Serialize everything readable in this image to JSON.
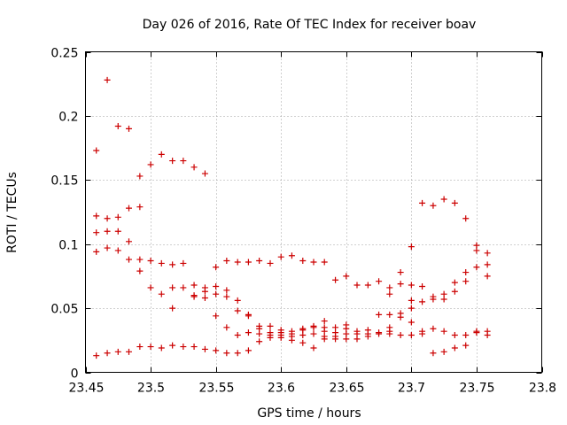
{
  "chart_data": {
    "type": "scatter",
    "title": "Day 026 of 2016, Rate Of TEC Index for receiver boav",
    "xlabel": "GPS time / hours",
    "ylabel": "ROTI / TECUs",
    "xlim": [
      23.45,
      23.8
    ],
    "ylim": [
      0,
      0.25
    ],
    "xticks": [
      23.45,
      23.5,
      23.55,
      23.6,
      23.65,
      23.7,
      23.75,
      23.8
    ],
    "xtick_labels": [
      "23.45",
      "23.5",
      "23.55",
      "23.6",
      "23.65",
      "23.7",
      "23.75",
      "23.8"
    ],
    "yticks": [
      0,
      0.05,
      0.1,
      0.15,
      0.2,
      0.25
    ],
    "ytick_labels": [
      "0",
      "0.05",
      "0.1",
      "0.15",
      "0.2",
      "0.25"
    ],
    "grid": true,
    "marker": "+",
    "color": "#cc0000",
    "points": [
      [
        23.4583,
        0.173
      ],
      [
        23.4583,
        0.122
      ],
      [
        23.4583,
        0.109
      ],
      [
        23.4583,
        0.094
      ],
      [
        23.4583,
        0.013
      ],
      [
        23.4667,
        0.228
      ],
      [
        23.4667,
        0.12
      ],
      [
        23.4667,
        0.11
      ],
      [
        23.4667,
        0.097
      ],
      [
        23.4667,
        0.015
      ],
      [
        23.475,
        0.192
      ],
      [
        23.475,
        0.121
      ],
      [
        23.475,
        0.11
      ],
      [
        23.475,
        0.095
      ],
      [
        23.475,
        0.016
      ],
      [
        23.4833,
        0.19
      ],
      [
        23.4833,
        0.128
      ],
      [
        23.4833,
        0.102
      ],
      [
        23.4833,
        0.088
      ],
      [
        23.4833,
        0.016
      ],
      [
        23.4917,
        0.153
      ],
      [
        23.4917,
        0.129
      ],
      [
        23.4917,
        0.088
      ],
      [
        23.4917,
        0.079
      ],
      [
        23.4917,
        0.02
      ],
      [
        23.5,
        0.162
      ],
      [
        23.5,
        0.087
      ],
      [
        23.5,
        0.066
      ],
      [
        23.5,
        0.02
      ],
      [
        23.5083,
        0.17
      ],
      [
        23.5083,
        0.085
      ],
      [
        23.5083,
        0.061
      ],
      [
        23.5083,
        0.019
      ],
      [
        23.5167,
        0.165
      ],
      [
        23.5167,
        0.084
      ],
      [
        23.5167,
        0.066
      ],
      [
        23.5167,
        0.05
      ],
      [
        23.5167,
        0.021
      ],
      [
        23.525,
        0.165
      ],
      [
        23.525,
        0.085
      ],
      [
        23.525,
        0.066
      ],
      [
        23.525,
        0.02
      ],
      [
        23.5333,
        0.16
      ],
      [
        23.5333,
        0.068
      ],
      [
        23.5333,
        0.06
      ],
      [
        23.5333,
        0.059
      ],
      [
        23.5333,
        0.02
      ],
      [
        23.5417,
        0.155
      ],
      [
        23.5417,
        0.066
      ],
      [
        23.5417,
        0.063
      ],
      [
        23.5417,
        0.058
      ],
      [
        23.5417,
        0.018
      ],
      [
        23.55,
        0.082
      ],
      [
        23.55,
        0.067
      ],
      [
        23.55,
        0.061
      ],
      [
        23.55,
        0.044
      ],
      [
        23.55,
        0.017
      ],
      [
        23.5583,
        0.087
      ],
      [
        23.5583,
        0.064
      ],
      [
        23.5583,
        0.059
      ],
      [
        23.5583,
        0.035
      ],
      [
        23.5583,
        0.015
      ],
      [
        23.5667,
        0.086
      ],
      [
        23.5667,
        0.056
      ],
      [
        23.5667,
        0.048
      ],
      [
        23.5667,
        0.029
      ],
      [
        23.5667,
        0.015
      ],
      [
        23.575,
        0.086
      ],
      [
        23.575,
        0.045
      ],
      [
        23.575,
        0.044
      ],
      [
        23.575,
        0.031
      ],
      [
        23.575,
        0.017
      ],
      [
        23.5833,
        0.087
      ],
      [
        23.5833,
        0.036
      ],
      [
        23.5833,
        0.034
      ],
      [
        23.5833,
        0.03
      ],
      [
        23.5833,
        0.024
      ],
      [
        23.5917,
        0.085
      ],
      [
        23.5917,
        0.036
      ],
      [
        23.5917,
        0.031
      ],
      [
        23.5917,
        0.029
      ],
      [
        23.5917,
        0.027
      ],
      [
        23.6,
        0.09
      ],
      [
        23.6,
        0.033
      ],
      [
        23.6,
        0.031
      ],
      [
        23.6,
        0.029
      ],
      [
        23.6,
        0.027
      ],
      [
        23.6083,
        0.091
      ],
      [
        23.6083,
        0.032
      ],
      [
        23.6083,
        0.03
      ],
      [
        23.6083,
        0.028
      ],
      [
        23.6083,
        0.025
      ],
      [
        23.6167,
        0.087
      ],
      [
        23.6167,
        0.034
      ],
      [
        23.6167,
        0.033
      ],
      [
        23.6167,
        0.029
      ],
      [
        23.6167,
        0.023
      ],
      [
        23.625,
        0.086
      ],
      [
        23.625,
        0.036
      ],
      [
        23.625,
        0.035
      ],
      [
        23.625,
        0.03
      ],
      [
        23.625,
        0.019
      ],
      [
        23.6333,
        0.086
      ],
      [
        23.6333,
        0.04
      ],
      [
        23.6333,
        0.035
      ],
      [
        23.6333,
        0.032
      ],
      [
        23.6333,
        0.028
      ],
      [
        23.6333,
        0.026
      ],
      [
        23.6417,
        0.072
      ],
      [
        23.6417,
        0.035
      ],
      [
        23.6417,
        0.031
      ],
      [
        23.6417,
        0.028
      ],
      [
        23.6417,
        0.026
      ],
      [
        23.65,
        0.075
      ],
      [
        23.65,
        0.037
      ],
      [
        23.65,
        0.034
      ],
      [
        23.65,
        0.03
      ],
      [
        23.65,
        0.026
      ],
      [
        23.6583,
        0.068
      ],
      [
        23.6583,
        0.032
      ],
      [
        23.6583,
        0.03
      ],
      [
        23.6583,
        0.026
      ],
      [
        23.6667,
        0.068
      ],
      [
        23.6667,
        0.033
      ],
      [
        23.6667,
        0.03
      ],
      [
        23.6667,
        0.028
      ],
      [
        23.675,
        0.071
      ],
      [
        23.675,
        0.045
      ],
      [
        23.675,
        0.031
      ],
      [
        23.675,
        0.03
      ],
      [
        23.6833,
        0.066
      ],
      [
        23.6833,
        0.061
      ],
      [
        23.6833,
        0.045
      ],
      [
        23.6833,
        0.035
      ],
      [
        23.6833,
        0.032
      ],
      [
        23.6833,
        0.03
      ],
      [
        23.6917,
        0.078
      ],
      [
        23.6917,
        0.069
      ],
      [
        23.6917,
        0.046
      ],
      [
        23.6917,
        0.043
      ],
      [
        23.6917,
        0.029
      ],
      [
        23.7,
        0.098
      ],
      [
        23.7,
        0.068
      ],
      [
        23.7,
        0.056
      ],
      [
        23.7,
        0.05
      ],
      [
        23.7,
        0.039
      ],
      [
        23.7,
        0.029
      ],
      [
        23.7083,
        0.132
      ],
      [
        23.7083,
        0.067
      ],
      [
        23.7083,
        0.055
      ],
      [
        23.7083,
        0.032
      ],
      [
        23.7083,
        0.03
      ],
      [
        23.7167,
        0.13
      ],
      [
        23.7167,
        0.059
      ],
      [
        23.7167,
        0.057
      ],
      [
        23.7167,
        0.034
      ],
      [
        23.7167,
        0.015
      ],
      [
        23.725,
        0.135
      ],
      [
        23.725,
        0.061
      ],
      [
        23.725,
        0.057
      ],
      [
        23.725,
        0.032
      ],
      [
        23.725,
        0.016
      ],
      [
        23.7333,
        0.132
      ],
      [
        23.7333,
        0.07
      ],
      [
        23.7333,
        0.063
      ],
      [
        23.7333,
        0.029
      ],
      [
        23.7333,
        0.019
      ],
      [
        23.7417,
        0.12
      ],
      [
        23.7417,
        0.078
      ],
      [
        23.7417,
        0.071
      ],
      [
        23.7417,
        0.029
      ],
      [
        23.7417,
        0.021
      ],
      [
        23.75,
        0.099
      ],
      [
        23.75,
        0.095
      ],
      [
        23.75,
        0.082
      ],
      [
        23.75,
        0.032
      ],
      [
        23.75,
        0.031
      ],
      [
        23.7583,
        0.093
      ],
      [
        23.7583,
        0.084
      ],
      [
        23.7583,
        0.075
      ],
      [
        23.7583,
        0.032
      ],
      [
        23.7583,
        0.029
      ]
    ]
  }
}
